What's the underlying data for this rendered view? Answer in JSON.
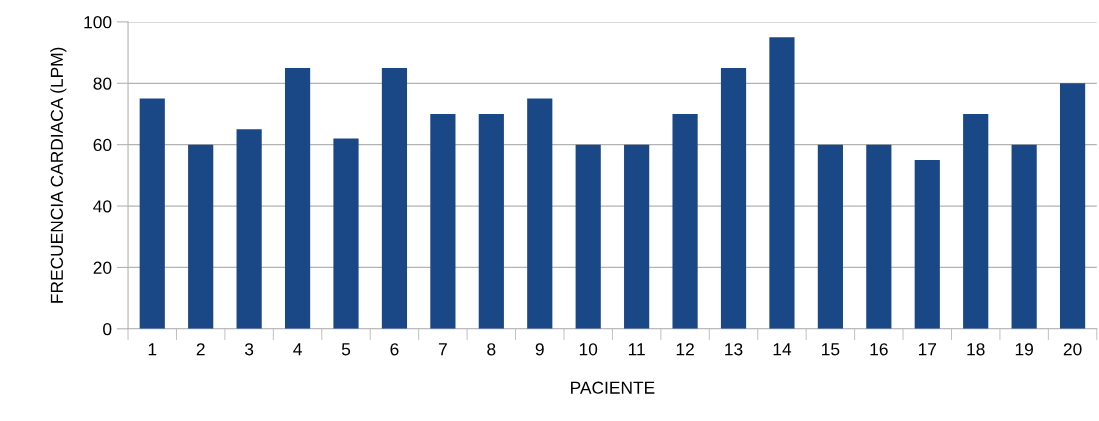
{
  "chart_data": {
    "type": "bar",
    "xlabel": "PACIENTE",
    "ylabel": "FRECUENCIA CARDIACA (LPM)",
    "categories": [
      "1",
      "2",
      "3",
      "4",
      "5",
      "6",
      "7",
      "8",
      "9",
      "10",
      "11",
      "12",
      "13",
      "14",
      "15",
      "16",
      "17",
      "18",
      "19",
      "20"
    ],
    "values": [
      75,
      60,
      65,
      85,
      62,
      85,
      70,
      70,
      75,
      60,
      60,
      70,
      85,
      95,
      60,
      60,
      55,
      70,
      60,
      80
    ],
    "color": "#1a4785",
    "ylim": [
      0,
      100
    ],
    "yticks": [
      0,
      20,
      40,
      60,
      80,
      100
    ],
    "grid": "y",
    "legend": false
  }
}
